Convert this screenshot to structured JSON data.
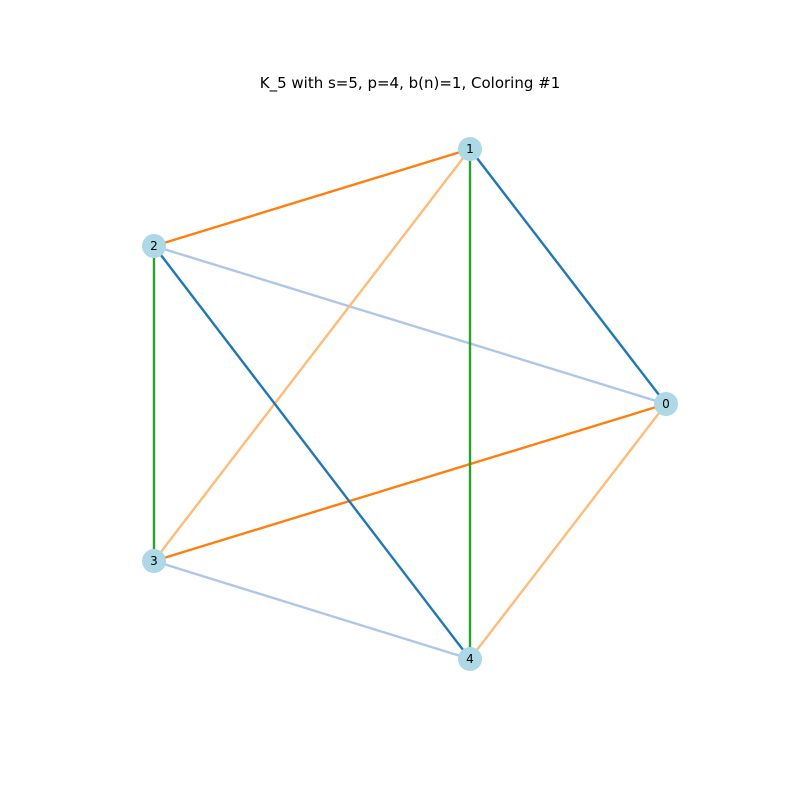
{
  "figure": {
    "title": "K_5 with s=5, p=4, b(n)=1, Coloring #1"
  },
  "graph": {
    "node_color": "#add8e6",
    "nodes": [
      {
        "id": "0",
        "label": "0"
      },
      {
        "id": "1",
        "label": "1"
      },
      {
        "id": "2",
        "label": "2"
      },
      {
        "id": "3",
        "label": "3"
      },
      {
        "id": "4",
        "label": "4"
      }
    ],
    "edges": [
      {
        "source": "0",
        "target": "1",
        "color": "#1f77b4"
      },
      {
        "source": "0",
        "target": "2",
        "color": "#aec7e8"
      },
      {
        "source": "0",
        "target": "3",
        "color": "#ff7f0e"
      },
      {
        "source": "0",
        "target": "4",
        "color": "#ffbb78"
      },
      {
        "source": "1",
        "target": "2",
        "color": "#ff7f0e"
      },
      {
        "source": "1",
        "target": "3",
        "color": "#ffbb78"
      },
      {
        "source": "1",
        "target": "4",
        "color": "#2ca02c"
      },
      {
        "source": "2",
        "target": "3",
        "color": "#2ca02c"
      },
      {
        "source": "2",
        "target": "4",
        "color": "#1f77b4"
      },
      {
        "source": "3",
        "target": "4",
        "color": "#aec7e8"
      }
    ]
  }
}
